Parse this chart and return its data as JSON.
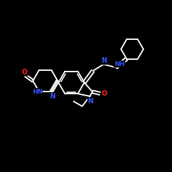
{
  "bg_color": "#000000",
  "bond_color": "#ffffff",
  "N_color": "#3355ff",
  "O_color": "#ff2222",
  "bond_lw": 1.4,
  "font_size": 7.0,
  "figsize": [
    2.5,
    2.5
  ],
  "dpi": 100,
  "xlim": [
    0,
    10
  ],
  "ylim": [
    0,
    10
  ]
}
